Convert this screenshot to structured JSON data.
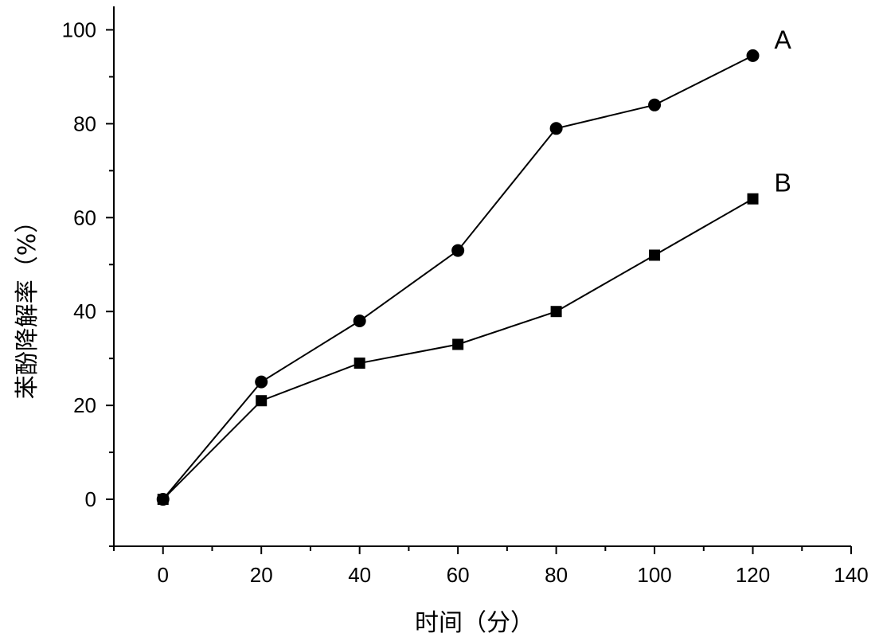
{
  "chart_data": {
    "type": "line",
    "title": "",
    "xlabel": "时间（分）",
    "ylabel": "苯酚降解率（%）",
    "xlim": [
      -10,
      140
    ],
    "ylim": [
      -10,
      105
    ],
    "x_ticks": [
      0,
      20,
      40,
      60,
      80,
      100,
      120,
      140
    ],
    "y_ticks": [
      0,
      20,
      40,
      60,
      80,
      100
    ],
    "x_tick_labels": [
      "0",
      "20",
      "40",
      "60",
      "80",
      "100",
      "120",
      "140"
    ],
    "y_tick_labels": [
      "0",
      "20",
      "40",
      "60",
      "80",
      "100"
    ],
    "grid": false,
    "legend": "none",
    "x": [
      0,
      20,
      40,
      60,
      80,
      100,
      120
    ],
    "series": [
      {
        "name": "A",
        "marker": "circle",
        "values": [
          0,
          25,
          38,
          53,
          79,
          84,
          94.5
        ]
      },
      {
        "name": "B",
        "marker": "square",
        "values": [
          0,
          21,
          29,
          33,
          40,
          52,
          64
        ]
      }
    ]
  }
}
